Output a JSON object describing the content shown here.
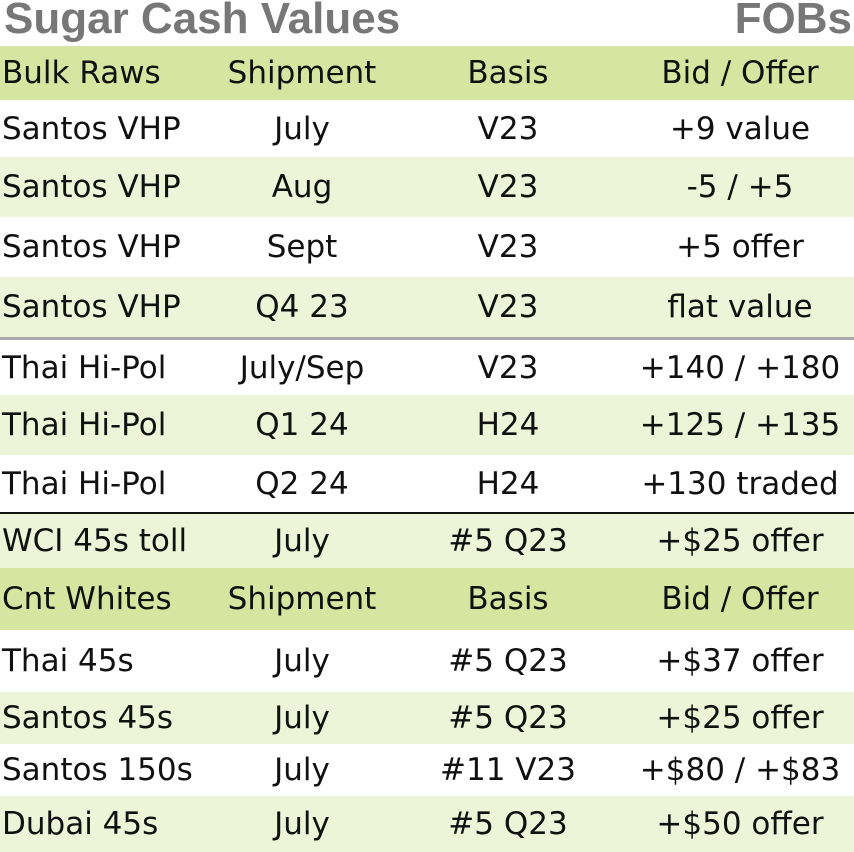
{
  "title": "Sugar Cash Values",
  "subtitle": "FOBs",
  "raws_header": [
    "Bulk Raws",
    "Shipment",
    "Basis",
    "Bid / Offer"
  ],
  "raws_rows": [
    [
      "Santos VHP",
      "July",
      "V23",
      "+9 value"
    ],
    [
      "Santos VHP",
      "Aug",
      "V23",
      "-5 / +5"
    ],
    [
      "Santos VHP",
      "Sept",
      "V23",
      "+5 offer"
    ],
    [
      "Santos VHP",
      "Q4 23",
      "V23",
      "flat value"
    ],
    [
      "Thai Hi-Pol",
      "July/Sep",
      "V23",
      "+140 / +180"
    ],
    [
      "Thai Hi-Pol",
      "Q1 24",
      "H24",
      "+125 / +135"
    ],
    [
      "Thai Hi-Pol",
      "Q2 24",
      "H24",
      "+130 traded"
    ],
    [
      "WCI 45s toll",
      "July",
      "#5 Q23",
      "+$25 offer"
    ]
  ],
  "whites_header": [
    "Cnt Whites",
    "Shipment",
    "Basis",
    "Bid / Offer"
  ],
  "whites_rows": [
    [
      "Thai 45s",
      "July",
      "#5 Q23",
      "+$37 offer"
    ],
    [
      "Santos 45s",
      "July",
      "#5 Q23",
      "+$25 offer"
    ],
    [
      "Santos 150s",
      "July",
      "#11 V23",
      "+$80 / +$83"
    ],
    [
      "Dubai 45s",
      "July",
      "#5 Q23",
      "+$50 offer"
    ]
  ]
}
